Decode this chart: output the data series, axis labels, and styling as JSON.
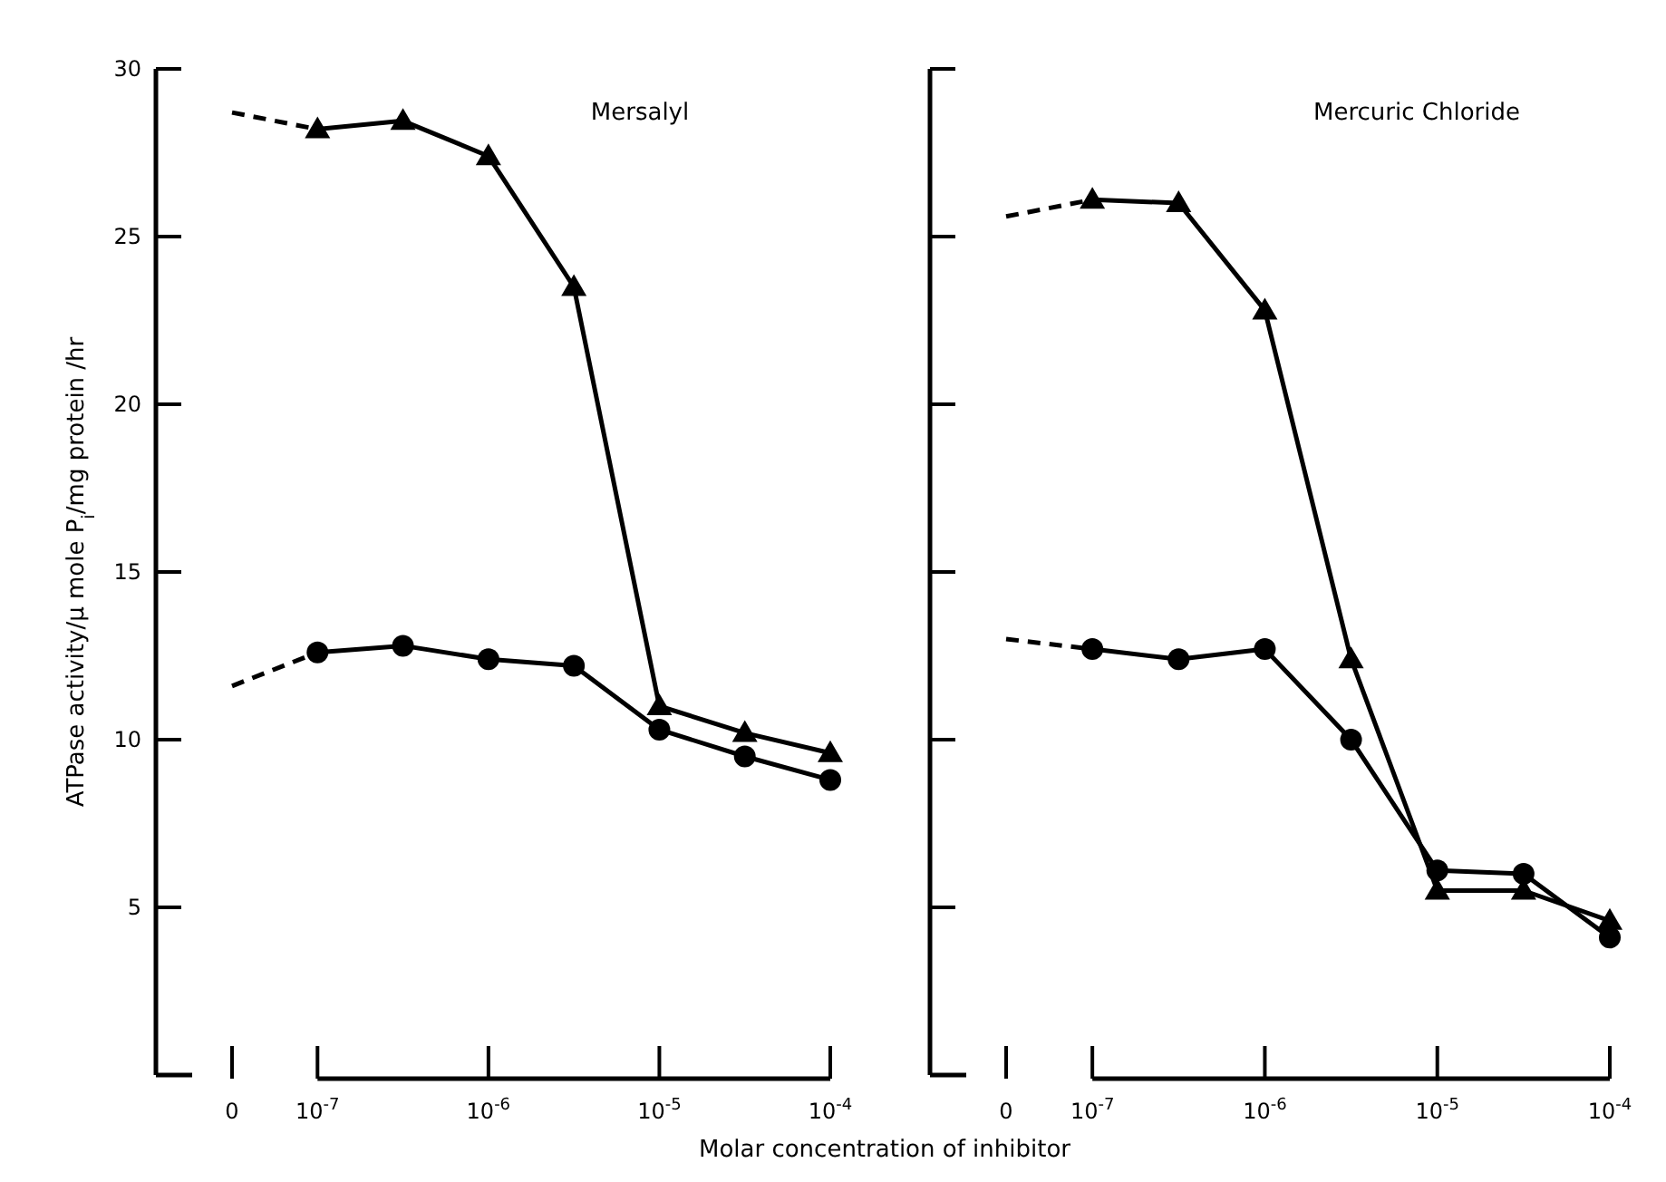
{
  "chart_data": [
    {
      "type": "line",
      "title": "Mersalyl",
      "ylabel": "ATPase activity/μ mole P$_{i}$/mg protein /hr",
      "xlabel": "Molar concentration of inhibitor",
      "categories": [
        "0",
        "10$^{-7}$",
        null,
        "10$^{-6}$",
        null,
        "10$^{-5}$",
        null,
        "10$^{-4}$"
      ],
      "ylim": [
        0,
        30
      ],
      "yticks": [
        5,
        10,
        15,
        20,
        25,
        30
      ],
      "grid": false,
      "series": [
        {
          "color": "#000000",
          "line_style": "dashed",
          "values": [
            28.7,
            28.2,
            null,
            null,
            null,
            null,
            null,
            null
          ]
        },
        {
          "color": "#000000",
          "marker": "triangle",
          "line_style": "solid",
          "values": [
            null,
            28.2,
            28.45,
            27.4,
            23.5,
            11.0,
            10.2,
            9.6
          ]
        },
        {
          "color": "#000000",
          "line_style": "dashed",
          "values": [
            11.6,
            12.6,
            null,
            null,
            null,
            null,
            null,
            null
          ]
        },
        {
          "color": "#000000",
          "marker": "circle",
          "line_style": "solid",
          "values": [
            null,
            12.6,
            12.8,
            12.4,
            12.2,
            10.3,
            9.5,
            8.8
          ]
        }
      ]
    },
    {
      "type": "line",
      "title": "Mercuric Chloride",
      "categories": [
        "0",
        "10$^{-7}$",
        null,
        "10$^{-6}$",
        null,
        "10$^{-5}$",
        null,
        "10$^{-4}$"
      ],
      "ylim": [
        0,
        30
      ],
      "yticks": [
        5,
        10,
        15,
        20,
        25,
        30
      ],
      "tick_labels": "x",
      "grid": false,
      "series": [
        {
          "color": "#000000",
          "line_style": "dashed",
          "values": [
            25.6,
            26.1,
            null,
            null,
            null,
            null,
            null,
            null
          ]
        },
        {
          "color": "#000000",
          "marker": "triangle",
          "line_style": "solid",
          "values": [
            null,
            26.1,
            26.0,
            22.8,
            12.4,
            5.5,
            5.5,
            4.6
          ]
        },
        {
          "color": "#000000",
          "line_style": "dashed",
          "values": [
            13.0,
            12.7,
            null,
            null,
            null,
            null,
            null,
            null
          ]
        },
        {
          "color": "#000000",
          "marker": "circle",
          "line_style": "solid",
          "values": [
            null,
            12.7,
            12.4,
            12.7,
            10.0,
            6.1,
            6.0,
            4.1
          ]
        }
      ]
    }
  ]
}
